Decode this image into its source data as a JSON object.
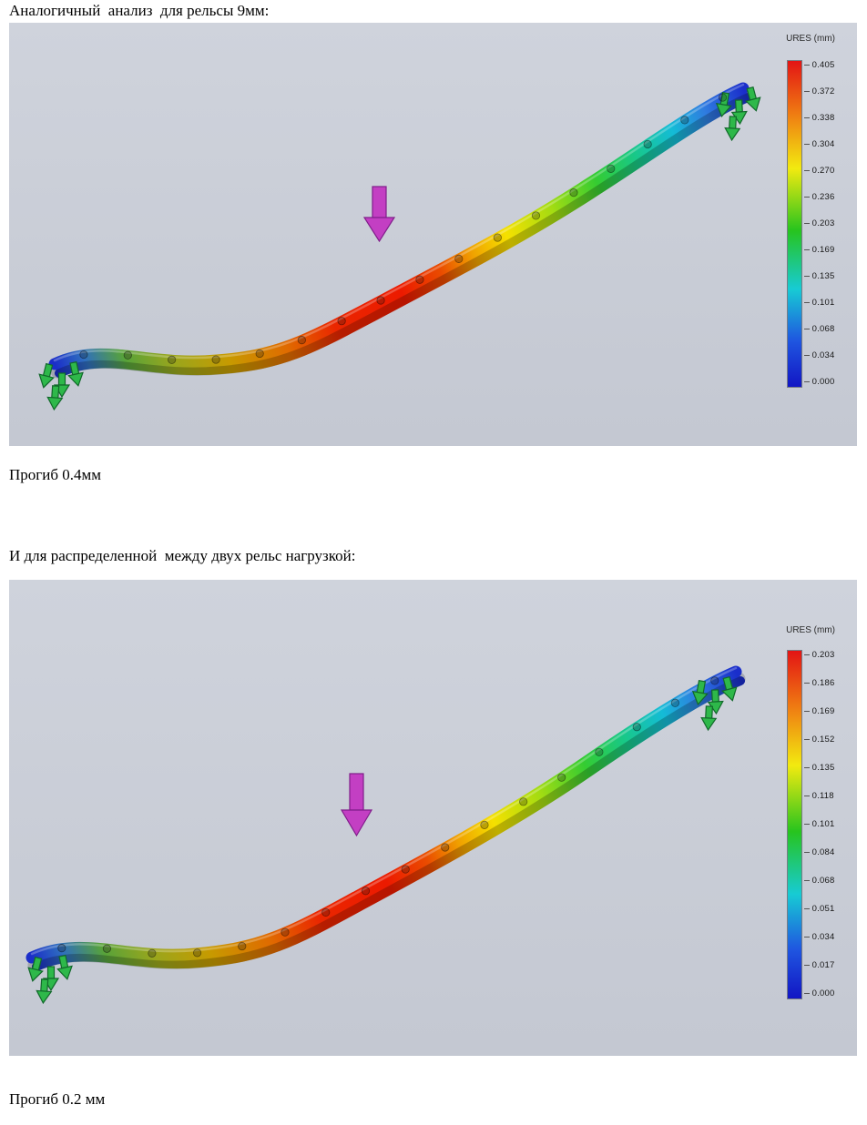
{
  "texts": {
    "heading1": "Аналогичный  анализ  для рельсы 9мм:",
    "caption1": "Прогиб 0.4мм",
    "heading2": "И для распределенной  между двух рельс нагрузкой:",
    "caption2": "Прогиб 0.2 мм"
  },
  "figure1": {
    "legend_title": "URES (mm)",
    "legend_values": [
      "0.405",
      "0.372",
      "0.338",
      "0.304",
      "0.270",
      "0.236",
      "0.203",
      "0.169",
      "0.135",
      "0.101",
      "0.068",
      "0.034",
      "0.000"
    ]
  },
  "figure2": {
    "legend_title": "URES (mm)",
    "legend_values": [
      "0.203",
      "0.186",
      "0.169",
      "0.152",
      "0.135",
      "0.118",
      "0.101",
      "0.084",
      "0.068",
      "0.051",
      "0.034",
      "0.017",
      "0.000"
    ]
  },
  "colors": {
    "figure_background": "#c9cdd6",
    "fixture_green": "#2eb84a",
    "load_arrow_magenta": "#c33fc3",
    "legend_spectrum_top_to_bottom": [
      "#e31414",
      "#ef7a12",
      "#f2ea10",
      "#27c41e",
      "#17cbd4",
      "#1f55e0",
      "#1216c4"
    ]
  }
}
